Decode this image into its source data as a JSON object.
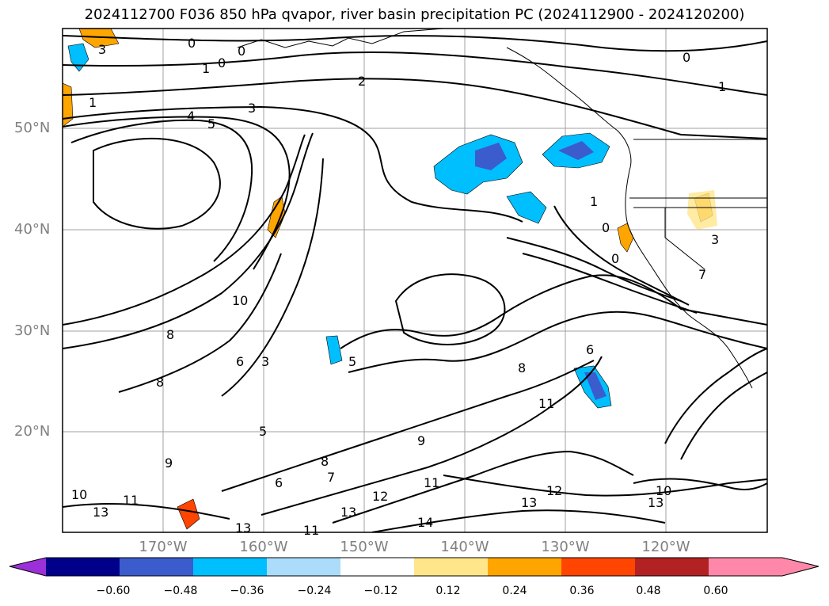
{
  "title": "2024112700 F036 850 hPa qvapor, river basin precipitation PC (2024112900 - 2024120200)",
  "map": {
    "lat_labels": [
      "50°N",
      "40°N",
      "30°N",
      "20°N"
    ],
    "lon_labels": [
      "170°W",
      "160°W",
      "150°W",
      "140°W",
      "130°W",
      "120°W"
    ],
    "contour_labels": [
      "0",
      "0",
      "0",
      "0",
      "1",
      "1",
      "1",
      "1",
      "2",
      "3",
      "3",
      "3",
      "4",
      "5",
      "5",
      "5",
      "6",
      "6",
      "6",
      "8",
      "8",
      "8",
      "9",
      "9",
      "10",
      "10",
      "10",
      "11",
      "11",
      "11",
      "11",
      "12",
      "12",
      "13",
      "13",
      "13",
      "13",
      "13",
      "14",
      "3",
      "0",
      "0",
      "8",
      "7",
      "7"
    ],
    "colors": {
      "contour": "#000000",
      "grid": "#808080",
      "coast": "#000000",
      "blue_light": "#abdcf9",
      "blue_mid": "#00bfff",
      "blue_dark": "#3b5ccc",
      "orange_light": "#ffe68a",
      "orange_mid": "#ffa500",
      "orange_dark": "#ff4500"
    }
  },
  "colorbar": {
    "ticks": [
      "−0.60",
      "−0.48",
      "−0.36",
      "−0.24",
      "−0.12",
      "0.12",
      "0.24",
      "0.36",
      "0.48",
      "0.60"
    ],
    "colors": [
      "#9b30d9",
      "#00008b",
      "#3b5ccc",
      "#00bfff",
      "#abdcf9",
      "#ffffff",
      "#ffe68a",
      "#ffa500",
      "#ff4500",
      "#b22222",
      "#ff88aa",
      "#ff88aa"
    ]
  }
}
